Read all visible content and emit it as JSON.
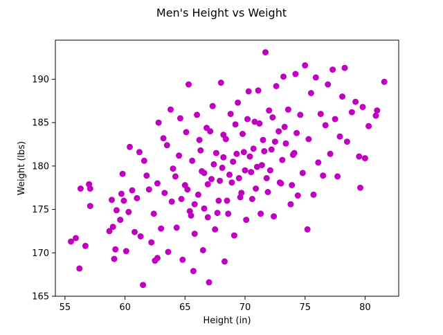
{
  "chart_data": {
    "type": "scatter",
    "title": "Men's Height vs Weight",
    "xlabel": "Height (in)",
    "ylabel": "Weight (lbs)",
    "xlim": [
      54.2,
      82.8
    ],
    "ylim": [
      165,
      194.5
    ],
    "xticks": [
      55,
      60,
      65,
      70,
      75,
      80
    ],
    "yticks": [
      165,
      170,
      175,
      180,
      185,
      190
    ],
    "grid": false,
    "marker_color": "#bf00bf",
    "series": [
      {
        "points": [
          [
            55.5,
            171.3
          ],
          [
            55.9,
            171.7
          ],
          [
            56.2,
            168.2
          ],
          [
            56.3,
            177.4
          ],
          [
            56.7,
            170.8
          ],
          [
            57.0,
            177.9
          ],
          [
            57.1,
            177.4
          ],
          [
            57.1,
            175.4
          ],
          [
            58.7,
            172.5
          ],
          [
            58.9,
            176.1
          ],
          [
            59.0,
            173.0
          ],
          [
            59.1,
            169.3
          ],
          [
            59.2,
            170.4
          ],
          [
            59.3,
            174.9
          ],
          [
            59.6,
            173.8
          ],
          [
            59.7,
            176.8
          ],
          [
            59.8,
            179.1
          ],
          [
            59.9,
            176.0
          ],
          [
            60.1,
            170.2
          ],
          [
            60.3,
            174.7
          ],
          [
            60.4,
            182.2
          ],
          [
            60.6,
            177.2
          ],
          [
            60.8,
            172.4
          ],
          [
            61.0,
            176.3
          ],
          [
            61.2,
            181.6
          ],
          [
            61.3,
            171.9
          ],
          [
            61.5,
            166.3
          ],
          [
            61.6,
            180.6
          ],
          [
            61.8,
            178.9
          ],
          [
            62.0,
            177.3
          ],
          [
            62.2,
            171.2
          ],
          [
            62.4,
            174.5
          ],
          [
            62.5,
            169.1
          ],
          [
            62.7,
            169.4
          ],
          [
            62.7,
            178.0
          ],
          [
            62.8,
            185.0
          ],
          [
            63.0,
            172.8
          ],
          [
            63.2,
            183.2
          ],
          [
            63.3,
            176.9
          ],
          [
            63.5,
            182.4
          ],
          [
            63.6,
            170.1
          ],
          [
            63.8,
            186.5
          ],
          [
            63.9,
            175.9
          ],
          [
            64.2,
            178.8
          ],
          [
            64.3,
            172.9
          ],
          [
            64.5,
            181.2
          ],
          [
            64.6,
            185.5
          ],
          [
            64.8,
            169.2
          ],
          [
            65.0,
            177.8
          ],
          [
            65.1,
            183.9
          ],
          [
            65.3,
            189.4
          ],
          [
            65.4,
            174.8
          ],
          [
            65.6,
            180.6
          ],
          [
            65.7,
            167.9
          ],
          [
            65.8,
            172.2
          ],
          [
            66.0,
            185.9
          ],
          [
            66.1,
            176.7
          ],
          [
            66.3,
            181.8
          ],
          [
            66.5,
            170.3
          ],
          [
            66.6,
            179.2
          ],
          [
            66.8,
            184.4
          ],
          [
            66.9,
            174.1
          ],
          [
            67.0,
            166.6
          ],
          [
            67.2,
            178.5
          ],
          [
            67.3,
            186.9
          ],
          [
            67.5,
            172.7
          ],
          [
            67.6,
            181.5
          ],
          [
            67.8,
            176.0
          ],
          [
            68.0,
            189.6
          ],
          [
            68.1,
            179.8
          ],
          [
            68.3,
            169.0
          ],
          [
            68.4,
            183.1
          ],
          [
            68.6,
            174.5
          ],
          [
            68.8,
            186.0
          ],
          [
            68.9,
            178.1
          ],
          [
            69.1,
            172.0
          ],
          [
            69.3,
            181.4
          ],
          [
            69.4,
            187.3
          ],
          [
            69.6,
            176.4
          ],
          [
            69.8,
            183.7
          ],
          [
            70.0,
            179.5
          ],
          [
            70.1,
            173.8
          ],
          [
            70.3,
            188.6
          ],
          [
            70.4,
            181.1
          ],
          [
            70.6,
            176.2
          ],
          [
            70.8,
            185.1
          ],
          [
            71.0,
            179.9
          ],
          [
            71.1,
            188.7
          ],
          [
            71.3,
            174.5
          ],
          [
            71.5,
            183.0
          ],
          [
            71.7,
            193.1
          ],
          [
            71.8,
            178.6
          ],
          [
            72.0,
            186.4
          ],
          [
            72.2,
            181.9
          ],
          [
            72.4,
            174.2
          ],
          [
            72.6,
            189.2
          ],
          [
            72.8,
            184.0
          ],
          [
            73.0,
            178.0
          ],
          [
            73.2,
            190.3
          ],
          [
            73.4,
            182.6
          ],
          [
            73.6,
            186.5
          ],
          [
            73.8,
            175.6
          ],
          [
            74.0,
            181.3
          ],
          [
            74.2,
            190.6
          ],
          [
            74.4,
            176.6
          ],
          [
            74.6,
            185.9
          ],
          [
            74.8,
            179.2
          ],
          [
            75.0,
            191.6
          ],
          [
            75.2,
            172.7
          ],
          [
            75.3,
            183.1
          ],
          [
            75.5,
            188.4
          ],
          [
            75.7,
            176.7
          ],
          [
            75.9,
            190.2
          ],
          [
            76.1,
            180.4
          ],
          [
            76.3,
            186.0
          ],
          [
            76.5,
            178.9
          ],
          [
            76.7,
            184.7
          ],
          [
            76.9,
            189.4
          ],
          [
            77.1,
            181.4
          ],
          [
            77.3,
            191.1
          ],
          [
            77.5,
            185.4
          ],
          [
            77.7,
            178.8
          ],
          [
            77.9,
            183.4
          ],
          [
            78.1,
            188.0
          ],
          [
            78.3,
            191.3
          ],
          [
            78.5,
            182.8
          ],
          [
            78.9,
            186.2
          ],
          [
            79.2,
            187.4
          ],
          [
            79.5,
            181.1
          ],
          [
            79.6,
            177.5
          ],
          [
            79.8,
            186.8
          ],
          [
            80.0,
            180.9
          ],
          [
            80.3,
            184.6
          ],
          [
            80.9,
            185.8
          ],
          [
            81.0,
            186.4
          ],
          [
            81.6,
            189.7
          ],
          [
            64.0,
            179.7
          ],
          [
            65.2,
            177.3
          ],
          [
            66.4,
            179.4
          ],
          [
            67.4,
            180.2
          ],
          [
            68.2,
            181.0
          ],
          [
            69.0,
            180.5
          ],
          [
            69.9,
            181.6
          ],
          [
            70.7,
            182.0
          ],
          [
            71.6,
            181.7
          ],
          [
            72.5,
            182.8
          ],
          [
            65.8,
            175.6
          ],
          [
            66.9,
            177.9
          ],
          [
            67.9,
            178.3
          ],
          [
            68.7,
            179.0
          ],
          [
            69.5,
            178.6
          ],
          [
            70.5,
            179.3
          ],
          [
            71.4,
            180.1
          ],
          [
            72.1,
            179.5
          ],
          [
            73.1,
            180.7
          ],
          [
            74.1,
            181.5
          ],
          [
            66.2,
            183.0
          ],
          [
            67.1,
            184.0
          ],
          [
            68.2,
            183.6
          ],
          [
            69.2,
            184.8
          ],
          [
            70.2,
            185.4
          ],
          [
            71.2,
            184.9
          ],
          [
            72.3,
            185.6
          ],
          [
            73.3,
            184.5
          ],
          [
            74.3,
            183.8
          ],
          [
            64.7,
            176.2
          ],
          [
            65.5,
            174.3
          ],
          [
            66.6,
            175.1
          ],
          [
            67.7,
            174.6
          ],
          [
            68.5,
            176.0
          ],
          [
            69.7,
            176.9
          ],
          [
            70.9,
            177.4
          ],
          [
            71.9,
            177.0
          ],
          [
            72.9,
            178.1
          ],
          [
            73.9,
            177.8
          ]
        ]
      }
    ]
  }
}
